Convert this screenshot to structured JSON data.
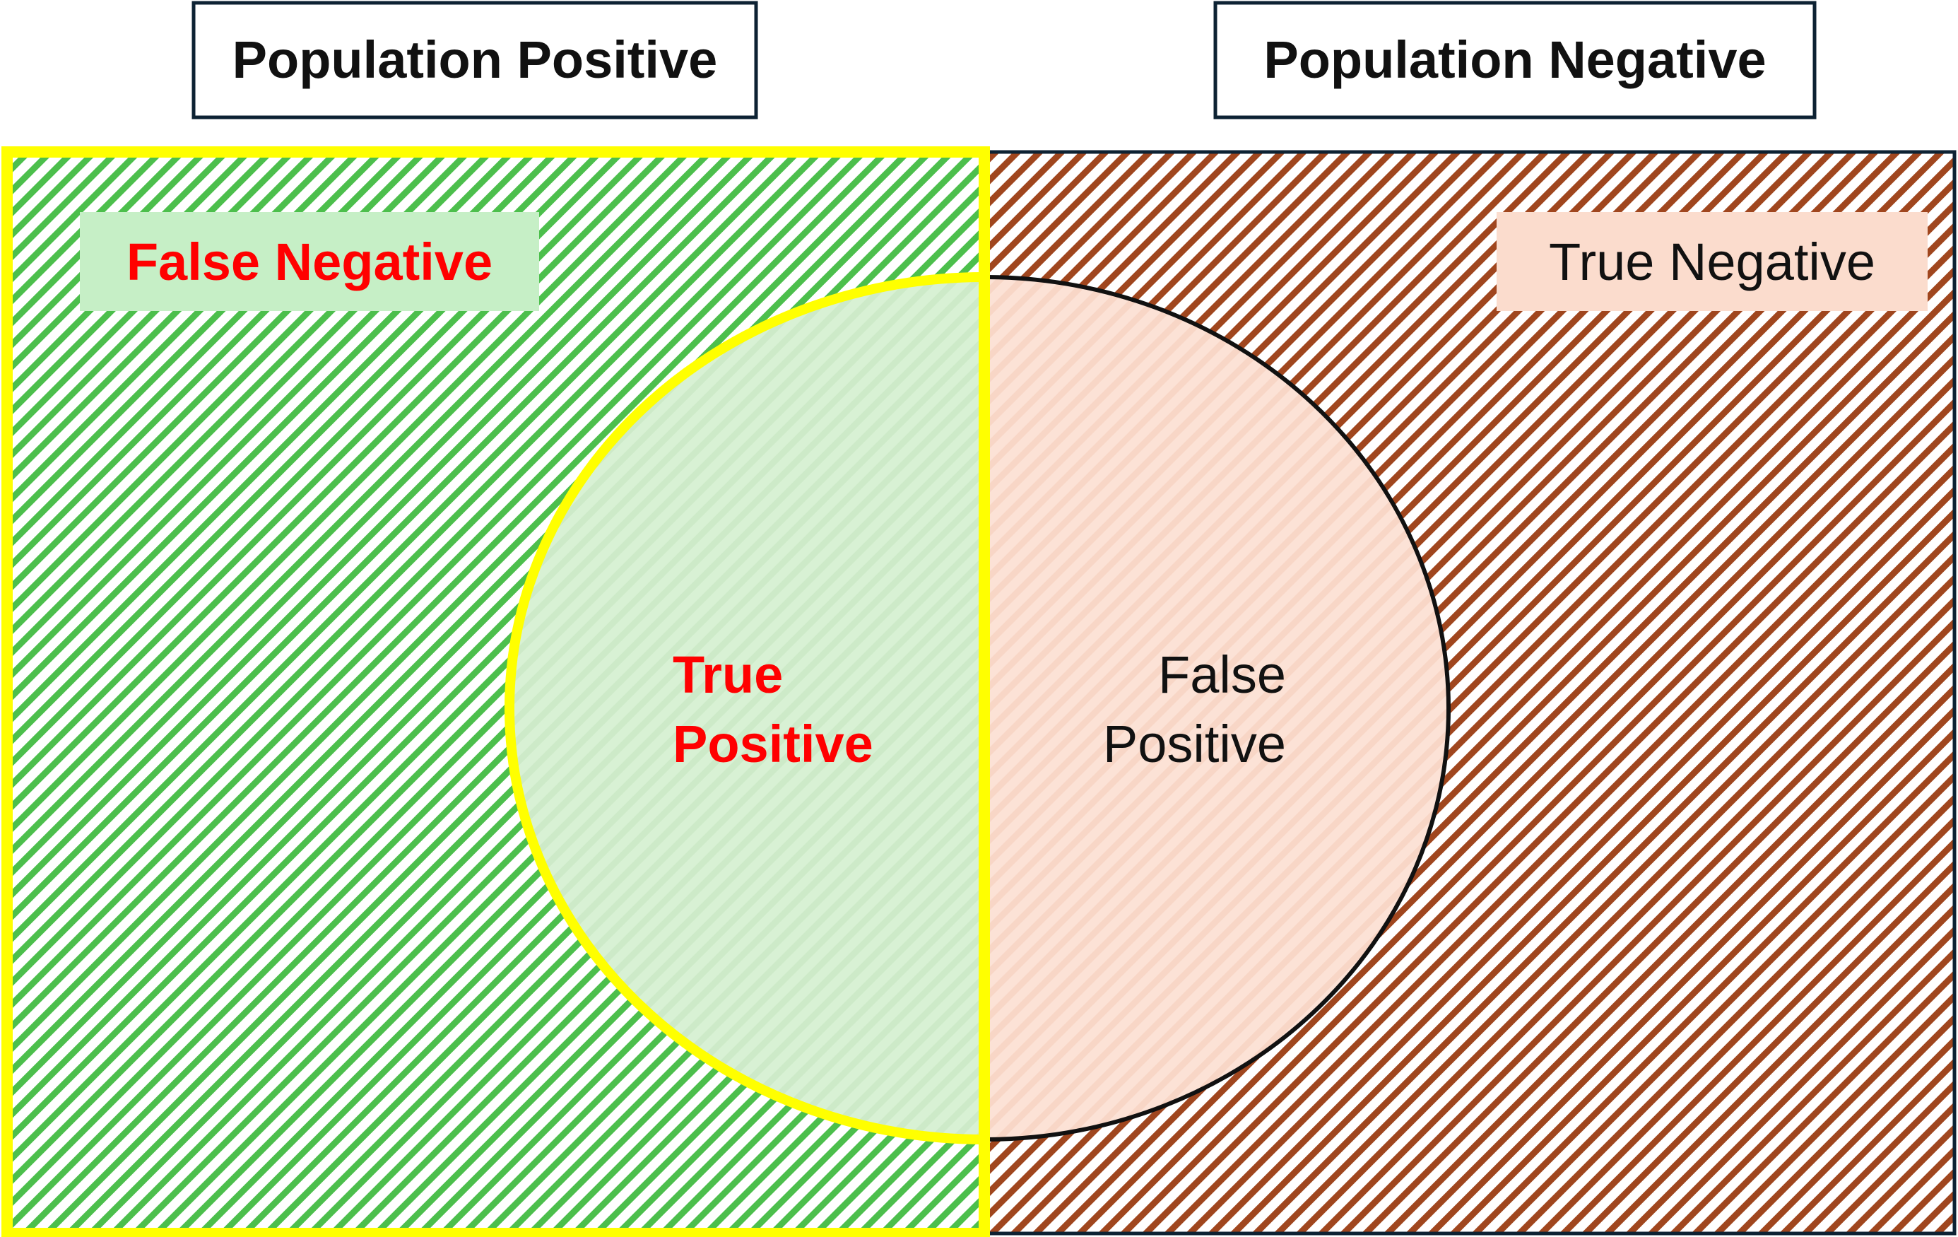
{
  "headers": {
    "positive": "Population Positive",
    "negative": "Population Negative"
  },
  "regions": {
    "false_negative": "False Negative",
    "true_positive_line1": "True",
    "true_positive_line2": "Positive",
    "false_positive_line1": "False",
    "false_positive_line2": "Positive",
    "true_negative": "True Negative"
  },
  "colors": {
    "positive_hatch": "#4cbf4c",
    "negative_hatch": "#a0461e",
    "highlight_border": "#ffff00",
    "outline": "#0d2233",
    "emphasis_text": "#ff0000",
    "plain_text": "#111111",
    "positive_label_bg": "#c6efc6",
    "negative_label_bg": "#fbdccd",
    "circle_left_fill": "#d6f0d2",
    "circle_right_fill": "#fce0d4"
  }
}
